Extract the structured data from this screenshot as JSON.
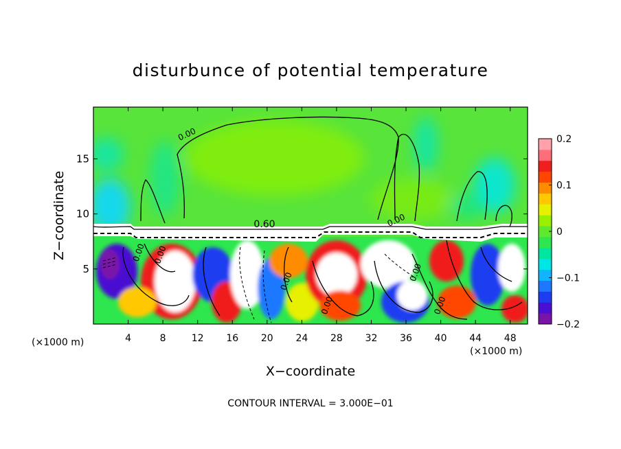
{
  "chart_data": {
    "type": "heatmap",
    "title": "disturbunce of potential temperature",
    "xlabel": "X−coordinate",
    "ylabel": "Z−coordinate",
    "x_unit": "(×1000 m)",
    "z_unit": "(×1000 m)",
    "xlim": [
      0,
      50
    ],
    "ylim": [
      0,
      19.7
    ],
    "x_ticks": [
      4,
      8,
      12,
      16,
      20,
      24,
      28,
      32,
      36,
      40,
      44,
      48
    ],
    "y_ticks": [
      5,
      10,
      15
    ],
    "x_tick_labels": [
      "4",
      "8",
      "12",
      "16",
      "20",
      "24",
      "28",
      "32",
      "36",
      "40",
      "44",
      "48"
    ],
    "y_tick_labels": [
      "5",
      "10",
      "15"
    ],
    "colorbar": {
      "range": [
        -0.2,
        0.2
      ],
      "ticks": [
        -0.2,
        -0.1,
        0,
        0.1,
        0.2
      ],
      "tick_labels": [
        "−0.2",
        "−0.1",
        "0",
        "0.1",
        "0.2"
      ],
      "colors": [
        "#7a14a8",
        "#4a0fd2",
        "#1e3cf0",
        "#1e78ff",
        "#12b4ff",
        "#00e6e6",
        "#00e6a0",
        "#2ee64e",
        "#5ee830",
        "#98f000",
        "#e6f000",
        "#ffc800",
        "#ff8c00",
        "#ff4600",
        "#f01e1e",
        "#ff6e78",
        "#ffa0aa"
      ]
    },
    "contour_labels": [
      {
        "text": "0.00",
        "x": 10.9,
        "z": 17.0
      },
      {
        "text": "0.60",
        "x": 19.7,
        "z": 8.8
      },
      {
        "text": "0.00",
        "x": 35.0,
        "z": 9.2
      },
      {
        "text": "0.00",
        "x": 5.5,
        "z": 6.4
      },
      {
        "text": "0.00",
        "x": 8.0,
        "z": 6.2
      },
      {
        "text": "0.00",
        "x": 22.5,
        "z": 3.8
      },
      {
        "text": "0.00",
        "x": 27.2,
        "z": 1.6
      },
      {
        "text": "0.00",
        "x": 37.4,
        "z": 4.6
      },
      {
        "text": "0.00",
        "x": 40.2,
        "z": 1.6
      }
    ],
    "grid": false,
    "legend": "colorbar-right",
    "contour_interval_label": "CONTOUR INTERVAL = 3.000E−01"
  }
}
